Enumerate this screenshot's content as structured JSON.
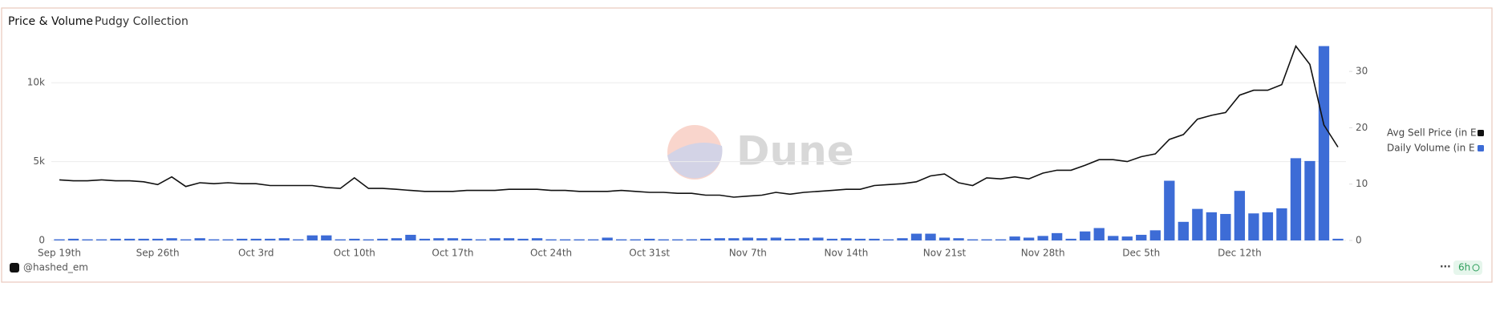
{
  "header": {
    "title": "Price & Volume",
    "subtitle": "Pudgy Collection"
  },
  "watermark": "Dune",
  "footer": {
    "author": "@hashed_em",
    "badge": "6h"
  },
  "chart_data": {
    "type": "bar-line",
    "categories": [
      "Sep 19th",
      null,
      null,
      null,
      null,
      null,
      null,
      "Sep 26th",
      null,
      null,
      null,
      null,
      null,
      null,
      "Oct 3rd",
      null,
      null,
      null,
      null,
      null,
      null,
      "Oct 10th",
      null,
      null,
      null,
      null,
      null,
      null,
      "Oct 17th",
      null,
      null,
      null,
      null,
      null,
      null,
      "Oct 24th",
      null,
      null,
      null,
      null,
      null,
      null,
      "Oct 31st",
      null,
      null,
      null,
      null,
      null,
      null,
      "Nov 7th",
      null,
      null,
      null,
      null,
      null,
      null,
      "Nov 14th",
      null,
      null,
      null,
      null,
      null,
      null,
      "Nov 21st",
      null,
      null,
      null,
      null,
      null,
      null,
      "Nov 28th",
      null,
      null,
      null,
      null,
      null,
      null,
      "Dec 5th",
      null,
      null,
      null,
      null,
      null,
      null,
      "Dec 12th",
      null,
      null,
      null,
      null,
      null,
      null,
      null
    ],
    "series": [
      {
        "name": "Avg Sell Price (in E",
        "color": "#111111",
        "kind": "line",
        "axis": "y",
        "values": [
          3840,
          3780,
          3780,
          3840,
          3780,
          3780,
          3720,
          3540,
          4030,
          3420,
          3660,
          3600,
          3660,
          3600,
          3600,
          3480,
          3480,
          3480,
          3480,
          3360,
          3300,
          3970,
          3300,
          3300,
          3240,
          3170,
          3110,
          3110,
          3110,
          3170,
          3170,
          3170,
          3240,
          3240,
          3240,
          3170,
          3170,
          3110,
          3110,
          3110,
          3170,
          3110,
          3050,
          3050,
          2990,
          2990,
          2870,
          2870,
          2745,
          2810,
          2870,
          3050,
          2930,
          3050,
          3110,
          3170,
          3240,
          3240,
          3480,
          3540,
          3600,
          3720,
          4090,
          4210,
          3660,
          3480,
          3970,
          3900,
          4030,
          3900,
          4270,
          4450,
          4450,
          4760,
          5120,
          5120,
          5000,
          5310,
          5490,
          6400,
          6710,
          7690,
          7930,
          8110,
          9210,
          9520,
          9520,
          9880,
          12320,
          11160,
          7320,
          5920
        ]
      },
      {
        "name": "Daily Volume (in E",
        "color": "#3d6cd6",
        "kind": "bar",
        "axis": "y2",
        "values": [
          0.2,
          0.3,
          0.2,
          0.2,
          0.3,
          0.3,
          0.3,
          0.3,
          0.4,
          0.2,
          0.4,
          0.2,
          0.2,
          0.3,
          0.3,
          0.3,
          0.4,
          0.2,
          0.9,
          0.9,
          0.2,
          0.3,
          0.2,
          0.3,
          0.4,
          1.0,
          0.3,
          0.4,
          0.4,
          0.3,
          0.2,
          0.4,
          0.4,
          0.3,
          0.4,
          0.2,
          0.2,
          0.2,
          0.2,
          0.5,
          0.2,
          0.2,
          0.3,
          0.2,
          0.2,
          0.2,
          0.3,
          0.4,
          0.4,
          0.5,
          0.4,
          0.5,
          0.3,
          0.4,
          0.5,
          0.3,
          0.4,
          0.3,
          0.3,
          0.2,
          0.4,
          1.2,
          1.2,
          0.5,
          0.4,
          0.2,
          0.2,
          0.2,
          0.7,
          0.5,
          0.8,
          1.3,
          0.3,
          1.6,
          2.2,
          0.8,
          0.7,
          1.0,
          1.8,
          10.6,
          3.3,
          5.6,
          5.0,
          4.7,
          8.8,
          4.8,
          5.0,
          5.7,
          14.6,
          14.1,
          34.5,
          0.3
        ]
      }
    ],
    "ylim": [
      0,
      12500
    ],
    "yticks": [
      0,
      {
        "value": 5000,
        "label": "5k"
      },
      {
        "value": 10000,
        "label": "10k"
      }
    ],
    "y2lim": [
      0,
      35
    ],
    "y2ticks": [
      0,
      10,
      20,
      30
    ],
    "grid": true,
    "legend": "right"
  }
}
